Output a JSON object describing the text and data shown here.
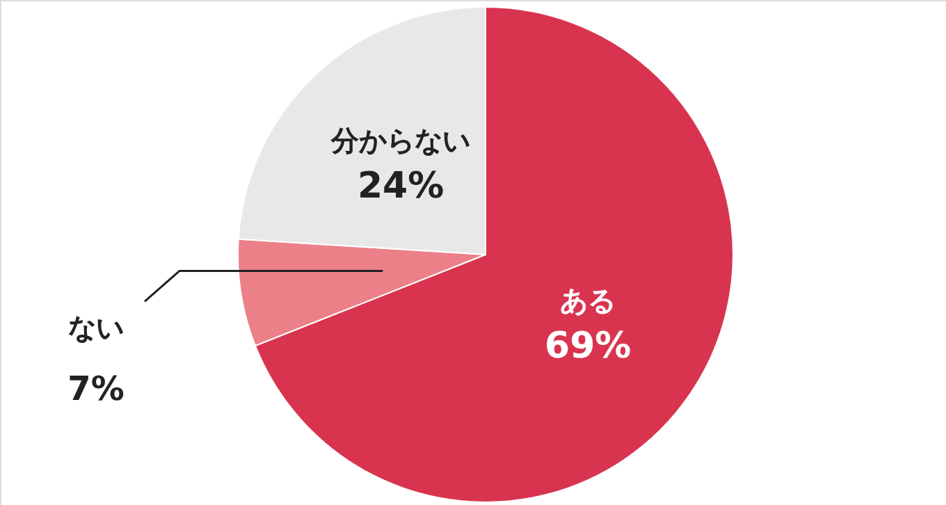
{
  "chart_data": {
    "type": "pie",
    "categories": [
      "ある",
      "ない",
      "分からない"
    ],
    "values": [
      69,
      7,
      24
    ],
    "colors": [
      "#d9344f",
      "#ec8088",
      "#e8e8e8"
    ],
    "value_labels": [
      "69%",
      "7%",
      "24%"
    ]
  }
}
